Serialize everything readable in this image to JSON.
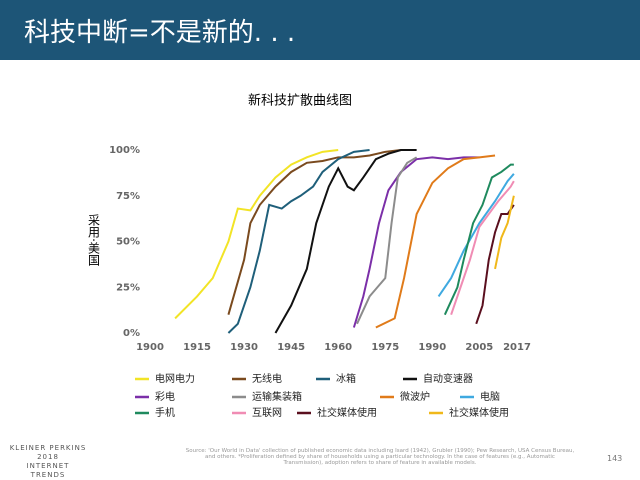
{
  "header": {
    "title": "科技中断=不是新的. . ."
  },
  "chart_data": {
    "type": "line",
    "title": "新科技扩散曲线图",
    "y_label": "采用·美国",
    "xlim": [
      1900,
      2017
    ],
    "xticks": [
      1900,
      1915,
      1930,
      1945,
      1960,
      1975,
      1990,
      2005,
      2017
    ],
    "ylim": [
      0,
      100
    ],
    "yticks": [
      {
        "value": 0,
        "label": "0%"
      },
      {
        "value": 25,
        "label": "25%"
      },
      {
        "value": 50,
        "label": "50%"
      },
      {
        "value": 75,
        "label": "75%"
      },
      {
        "value": 100,
        "label": "100%"
      }
    ],
    "grid": false,
    "series": [
      {
        "name": "电网电力",
        "color": "#f2e426",
        "x": [
          1908,
          1915,
          1920,
          1925,
          1928,
          1932,
          1935,
          1940,
          1945,
          1950,
          1955,
          1960
        ],
        "values": [
          8,
          20,
          30,
          50,
          68,
          67,
          75,
          85,
          92,
          96,
          99,
          100
        ]
      },
      {
        "name": "无线电",
        "color": "#7a4a1e",
        "x": [
          1925,
          1930,
          1932,
          1935,
          1940,
          1945,
          1950,
          1955,
          1960,
          1965,
          1970,
          1975,
          1980
        ],
        "values": [
          10,
          40,
          60,
          70,
          80,
          88,
          93,
          94,
          96,
          96,
          97,
          99,
          100
        ]
      },
      {
        "name": "冰箱",
        "color": "#1f5f7a",
        "x": [
          1925,
          1928,
          1932,
          1935,
          1938,
          1942,
          1945,
          1948,
          1952,
          1955,
          1960,
          1965,
          1970
        ],
        "values": [
          0,
          5,
          25,
          45,
          70,
          68,
          72,
          75,
          80,
          88,
          95,
          99,
          100
        ]
      },
      {
        "name": "自动变速器",
        "color": "#111111",
        "x": [
          1940,
          1945,
          1950,
          1953,
          1957,
          1960,
          1963,
          1965,
          1968,
          1972,
          1976,
          1980,
          1985
        ],
        "values": [
          0,
          15,
          35,
          60,
          80,
          90,
          80,
          78,
          85,
          95,
          98,
          100,
          100
        ]
      },
      {
        "name": "彩电",
        "color": "#7b2fa8",
        "x": [
          1965,
          1968,
          1970,
          1973,
          1976,
          1980,
          1985,
          1990,
          1995,
          2000,
          2005
        ],
        "values": [
          3,
          20,
          35,
          60,
          78,
          88,
          95,
          96,
          95,
          96,
          96
        ]
      },
      {
        "name": "运输集装箱",
        "color": "#8c8c8c",
        "x": [
          1966,
          1970,
          1975,
          1977,
          1979,
          1982,
          1985
        ],
        "values": [
          5,
          20,
          30,
          60,
          85,
          93,
          96
        ]
      },
      {
        "name": "微波炉",
        "color": "#e07b1a",
        "x": [
          1972,
          1978,
          1981,
          1985,
          1990,
          1995,
          2000,
          2005,
          2010
        ],
        "values": [
          3,
          8,
          30,
          65,
          82,
          90,
          95,
          96,
          97
        ]
      },
      {
        "name": "电脑",
        "color": "#3fa9e0",
        "x": [
          1992,
          1996,
          2000,
          2005,
          2010,
          2014,
          2016
        ],
        "values": [
          20,
          30,
          45,
          60,
          72,
          83,
          87
        ]
      },
      {
        "name": "手机",
        "color": "#1f8a5e",
        "x": [
          1994,
          1998,
          2000,
          2003,
          2006,
          2009,
          2012,
          2015,
          2016
        ],
        "values": [
          10,
          25,
          40,
          60,
          70,
          85,
          88,
          92,
          92
        ]
      },
      {
        "name": "互联网",
        "color": "#f08cb4",
        "x": [
          1996,
          1999,
          2002,
          2005,
          2008,
          2011,
          2015,
          2016
        ],
        "values": [
          10,
          25,
          40,
          58,
          65,
          72,
          80,
          83
        ]
      },
      {
        "name": "社交媒体使用",
        "color": "#5a0f1e",
        "x": [
          2004,
          2006,
          2008,
          2010,
          2012,
          2014,
          2016
        ],
        "values": [
          5,
          15,
          40,
          55,
          65,
          65,
          70
        ]
      },
      {
        "name": "社交媒体使用",
        "color": "#f0b81a",
        "x": [
          2010,
          2012,
          2014,
          2016
        ],
        "values": [
          35,
          52,
          60,
          75
        ]
      }
    ]
  },
  "footer": {
    "brand": "KLEINER PERKINS",
    "year": "2018",
    "report": "INTERNET TRENDS",
    "source": "Source: 'Our World in Data' collection of published economic data including Isard (1942), Grubler (1990); Pew Research, USA Census Bureau, and others. *Proliferation defined by share of households using a particular technology. In the case of features (e.g., Automatic Transmission), adoption refers to share of feature in available models.",
    "page": "143"
  }
}
